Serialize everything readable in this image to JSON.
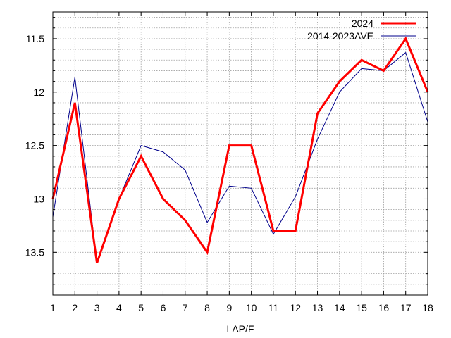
{
  "chart_data": {
    "type": "line",
    "title": "",
    "xlabel": "LAP/F",
    "ylabel": "",
    "x": [
      1,
      2,
      3,
      4,
      5,
      6,
      7,
      8,
      9,
      10,
      11,
      12,
      13,
      14,
      15,
      16,
      17,
      18
    ],
    "xlim": [
      1,
      18
    ],
    "ylim": [
      11.25,
      13.9
    ],
    "y_inverted": true,
    "y_ticks": [
      11.5,
      12,
      12.5,
      13,
      13.5
    ],
    "y_tick_labels": [
      "11.5",
      "12",
      "12.5",
      "13",
      "13.5"
    ],
    "y_minor_step": 0.1,
    "grid": true,
    "legend_position": "top-right",
    "series": [
      {
        "name": "2024",
        "color": "#ff0000",
        "values": [
          13.0,
          12.1,
          13.6,
          13.0,
          12.6,
          13.0,
          13.2,
          13.5,
          12.5,
          12.5,
          13.3,
          13.3,
          12.2,
          11.9,
          11.7,
          11.8,
          11.5,
          12.0
        ]
      },
      {
        "name": "2014-2023AVE",
        "color": "#00008b",
        "values": [
          13.17,
          11.86,
          13.6,
          13.0,
          12.5,
          12.56,
          12.73,
          13.22,
          12.88,
          12.9,
          13.33,
          12.98,
          12.44,
          12.0,
          11.78,
          11.8,
          11.63,
          12.28
        ]
      }
    ]
  }
}
